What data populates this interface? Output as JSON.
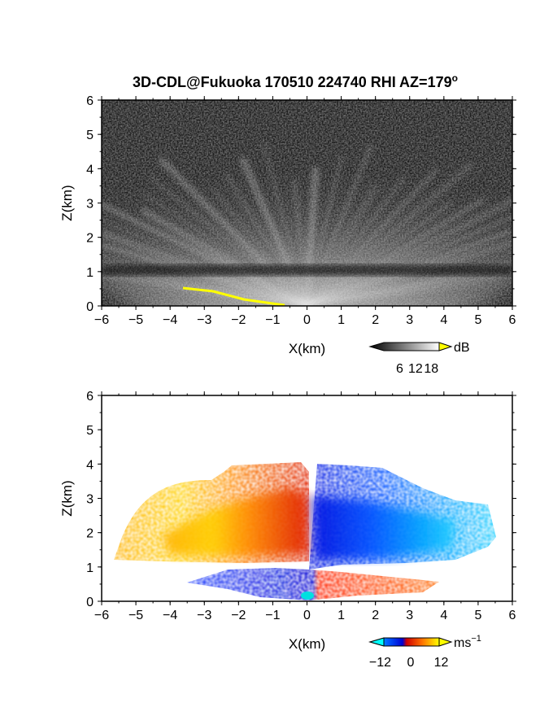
{
  "title": "3D-CDL@Fukuoka 170510 224740 RHI AZ=179",
  "title_superscript": "o",
  "colors": {
    "background": "#ffffff",
    "axes": "#000000",
    "ground_echo": "#ffff00"
  },
  "chart_data": [
    {
      "type": "heatmap",
      "name": "reflectivity-panel",
      "xlabel": "X(km)",
      "ylabel": "Z(km)",
      "xlim": [
        -6,
        6
      ],
      "ylim": [
        0,
        6
      ],
      "xticks": [
        -6,
        -5,
        -4,
        -3,
        -2,
        -1,
        0,
        1,
        2,
        3,
        4,
        5,
        6
      ],
      "yticks": [
        0,
        1,
        2,
        3,
        4,
        5,
        6
      ],
      "grid": false,
      "colorbar": {
        "unit": "dB",
        "ticks": [
          6,
          12,
          18
        ],
        "range": [
          0,
          21
        ],
        "colormap": "grayscale (black to white, yellow above max)"
      },
      "features": {
        "signal_top_km": 4.2,
        "dark_band_km": 1.05,
        "ground_echo_x_km": [
          -3.6,
          -0.7
        ]
      }
    },
    {
      "type": "heatmap",
      "name": "doppler-velocity-panel",
      "xlabel": "X(km)",
      "ylabel": "Z(km)",
      "xlim": [
        -6,
        6
      ],
      "ylim": [
        0,
        6
      ],
      "xticks": [
        -6,
        -5,
        -4,
        -3,
        -2,
        -1,
        0,
        1,
        2,
        3,
        4,
        5,
        6
      ],
      "yticks": [
        0,
        1,
        2,
        3,
        4,
        5,
        6
      ],
      "grid": false,
      "colorbar": {
        "unit": "ms",
        "unit_exponent": "−1",
        "ticks": [
          "−12",
          "0",
          "12"
        ],
        "range": [
          -16,
          16
        ],
        "colormap": "cyan-blue-red-orange-yellow"
      },
      "features": {
        "upper_layer_km": [
          1.1,
          4.0
        ],
        "gap_km": 1.0,
        "lower_layer_km": [
          0.0,
          0.85
        ],
        "left_of_zero_upper": "receding (red/orange/yellow)",
        "right_of_zero_upper": "approaching (blue/cyan)"
      }
    }
  ]
}
